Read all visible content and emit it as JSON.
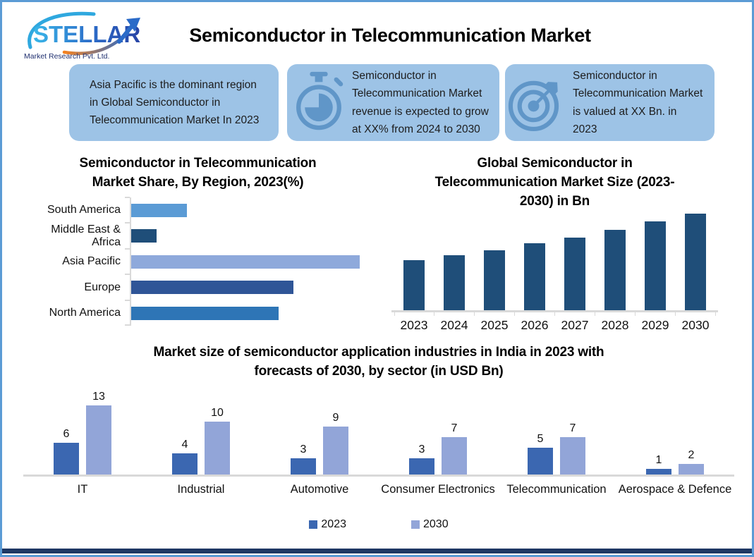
{
  "brand": {
    "name": "STELLAR",
    "tagline": "Market Research Pvt. Ltd."
  },
  "header": {
    "title": "Semiconductor in Telecommunication Market"
  },
  "info_boxes": [
    {
      "icon": null,
      "text": "Asia Pacific is the dominant region in Global  Semiconductor in Telecommunication Market In 2023"
    },
    {
      "icon": "stopwatch-icon",
      "text": "Semiconductor in Telecommunication Market revenue is expected to grow at XX% from 2024 to 2030"
    },
    {
      "icon": "target-icon",
      "text": "Semiconductor in Telecommunication Market is valued at XX Bn. in 2023"
    }
  ],
  "colors": {
    "page_border": "#5B9BD5",
    "footer_bar": "#1F3864",
    "info_box_bg": "#9DC3E6",
    "info_icon": "#6096C8",
    "axis_line": "#D9D9D9"
  },
  "chart_data": [
    {
      "id": "region-share",
      "type": "bar",
      "orientation": "horizontal",
      "title": "Semiconductor in Telecommunication Market Share, By Region, 2023(%)",
      "title_lines": [
        "Semiconductor in Telecommunication",
        "Market Share, By Region, 2023(%)"
      ],
      "categories": [
        "South America",
        "Middle East & Africa",
        "Asia Pacific",
        "Europe",
        "North America"
      ],
      "values": [
        11,
        5,
        45,
        32,
        29
      ],
      "values_note": "estimated from bar lengths; chart displays no data labels or value axis",
      "bar_colors": [
        "#5B9BD5",
        "#1F4E79",
        "#8EA9DB",
        "#2F5597",
        "#2E75B6"
      ],
      "xlim": [
        0,
        46
      ],
      "grid": false
    },
    {
      "id": "market-size",
      "type": "bar",
      "title": "Global Semiconductor in Telecommunication Market Size (2023-2030) in Bn",
      "title_lines": [
        "Global Semiconductor in",
        "Telecommunication Market Size (2023-",
        "2030) in Bn"
      ],
      "categories": [
        "2023",
        "2024",
        "2025",
        "2026",
        "2027",
        "2028",
        "2029",
        "2030"
      ],
      "values": [
        52,
        57,
        62,
        69,
        75,
        83,
        92,
        100
      ],
      "values_note": "relative heights (tallest = 100); chart displays no value axis or labels",
      "bar_color": "#1F4E79",
      "ylim": [
        0,
        100
      ],
      "grid": false
    },
    {
      "id": "india-applications",
      "type": "bar",
      "grouped": true,
      "title": "Market size of semiconductor application industries in India in 2023 with forecasts of 2030, by sector (in USD Bn)",
      "title_lines": [
        "Market size of semiconductor application industries in India in 2023 with",
        "forecasts of 2030, by sector (in USD Bn)"
      ],
      "categories": [
        "IT",
        "Industrial",
        "Automotive",
        "Consumer Electronics",
        "Telecommunication",
        "Aerospace & Defence"
      ],
      "series": [
        {
          "name": "2023",
          "color": "#3B67B1",
          "values": [
            6,
            4,
            3,
            3,
            5,
            1
          ]
        },
        {
          "name": "2030",
          "color": "#92A5D8",
          "values": [
            13,
            10,
            9,
            7,
            7,
            2
          ]
        }
      ],
      "ylim": [
        0,
        14
      ],
      "value_labels": true,
      "legend_position": "bottom",
      "grid": false
    }
  ]
}
